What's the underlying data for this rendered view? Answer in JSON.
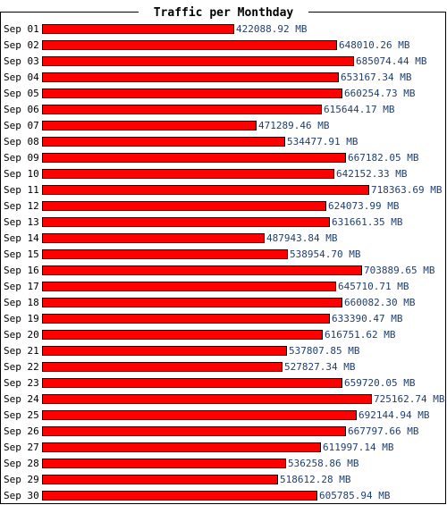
{
  "chart_data": {
    "type": "bar",
    "orientation": "horizontal",
    "title": "Traffic per Monthday",
    "unit": "MB",
    "categories": [
      "Sep 01",
      "Sep 02",
      "Sep 03",
      "Sep 04",
      "Sep 05",
      "Sep 06",
      "Sep 07",
      "Sep 08",
      "Sep 09",
      "Sep 10",
      "Sep 11",
      "Sep 12",
      "Sep 13",
      "Sep 14",
      "Sep 15",
      "Sep 16",
      "Sep 17",
      "Sep 18",
      "Sep 19",
      "Sep 20",
      "Sep 21",
      "Sep 22",
      "Sep 23",
      "Sep 24",
      "Sep 25",
      "Sep 26",
      "Sep 27",
      "Sep 28",
      "Sep 29",
      "Sep 30"
    ],
    "values": [
      422088.92,
      648010.26,
      685074.44,
      653167.34,
      660254.73,
      615644.17,
      471289.46,
      534477.91,
      667182.05,
      642152.33,
      718363.69,
      624073.99,
      631661.35,
      487943.84,
      538954.7,
      703889.65,
      645710.71,
      660082.3,
      633390.47,
      616751.62,
      537807.85,
      527827.34,
      659720.05,
      725162.74,
      692144.94,
      667797.66,
      611997.14,
      536258.86,
      518612.28,
      605785.94
    ],
    "value_labels": [
      "422088.92 MB",
      "648010.26 MB",
      "685074.44 MB",
      "653167.34 MB",
      "660254.73 MB",
      "615644.17 MB",
      "471289.46 MB",
      "534477.91 MB",
      "667182.05 MB",
      "642152.33 MB",
      "718363.69 MB",
      "624073.99 MB",
      "631661.35 MB",
      "487943.84 MB",
      "538954.70 MB",
      "703889.65 MB",
      "645710.71 MB",
      "660082.30 MB",
      "633390.47 MB",
      "616751.62 MB",
      "537807.85 MB",
      "527827.34 MB",
      "659720.05 MB",
      "725162.74 MB",
      "692144.94 MB",
      "667797.66 MB",
      "611997.14 MB",
      "536258.86 MB",
      "518612.28 MB",
      "605785.94 MB"
    ],
    "colors": {
      "bar": "#ff0000",
      "bar_outline": "#000000",
      "value_text": "#1f3f6f",
      "frame": "#000000",
      "background": "#ffffff"
    }
  }
}
